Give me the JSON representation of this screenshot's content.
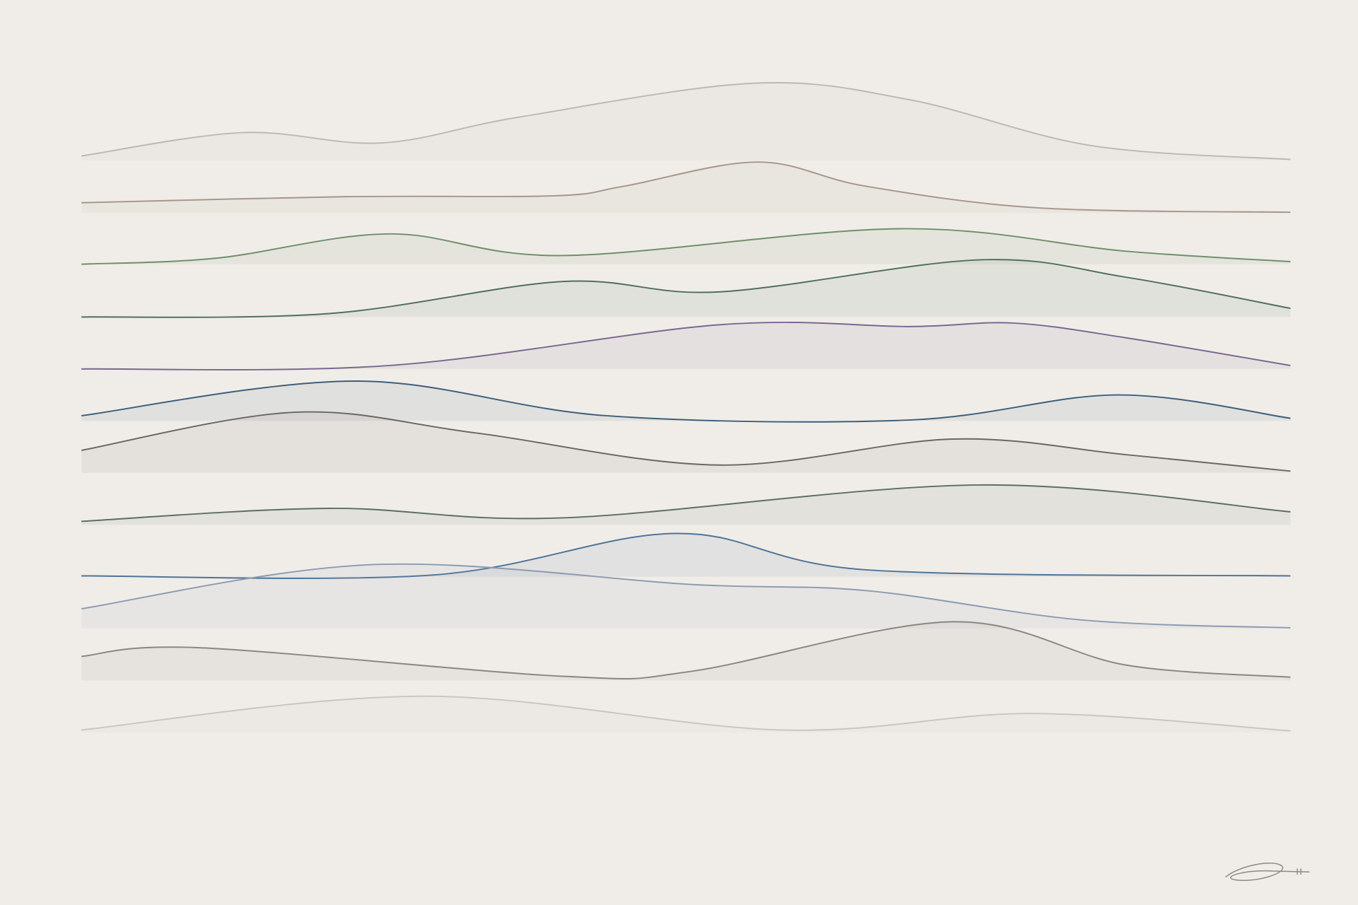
{
  "ridges": [
    {
      "color": "#bdb8b1"
    },
    {
      "color": "#a6968a"
    },
    {
      "color": "#6f8f6b"
    },
    {
      "color": "#50705a"
    },
    {
      "color": "#7a6890"
    },
    {
      "color": "#3e5f7b"
    },
    {
      "color": "#6a6660"
    },
    {
      "color": "#5a6e66"
    },
    {
      "color": "#4f7498"
    },
    {
      "color": "#8b9bb1"
    },
    {
      "color": "#8a8680"
    },
    {
      "color": "#c9c5bf"
    }
  ]
}
